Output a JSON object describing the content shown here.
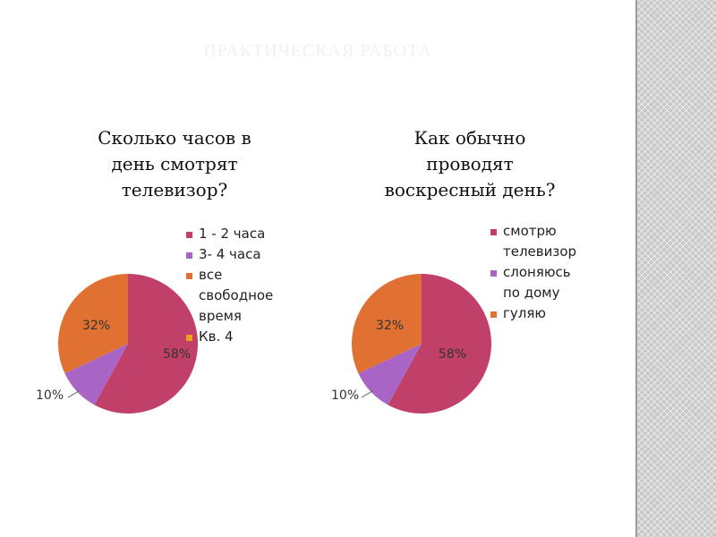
{
  "slide": {
    "title": "ПРАКТИЧЕСКАЯ РАБОТА"
  },
  "colors": {
    "title": "#f1f1f1",
    "panel": "#c9c9c9"
  },
  "chart_data": [
    {
      "type": "pie",
      "title": "Сколько часов в\nдень  смотрят\nтелевизор?",
      "slices": [
        {
          "label": "1 - 2 часа",
          "value": 58,
          "color": "#c0406a",
          "data_label": "58%"
        },
        {
          "label": "3- 4 часа",
          "value": 10,
          "color": "#a865c6",
          "data_label": "10%"
        },
        {
          "label": "все\nсвободное\nвремя",
          "value": 32,
          "color": "#e07133",
          "data_label": "32%"
        },
        {
          "label": "Кв. 4",
          "value": 0,
          "color": "#f0a020",
          "data_label": ""
        }
      ],
      "legend_position": "right"
    },
    {
      "type": "pie",
      "title": "Как обычно\nпроводят\nвоскресный день?",
      "slices": [
        {
          "label": "смотрю\nтелевизор",
          "value": 58,
          "color": "#c0406a",
          "data_label": "58%"
        },
        {
          "label": "слоняюсь\nпо дому",
          "value": 10,
          "color": "#a865c6",
          "data_label": "10%"
        },
        {
          "label": "гуляю",
          "value": 32,
          "color": "#e07133",
          "data_label": "32%"
        }
      ],
      "legend_position": "right"
    }
  ]
}
